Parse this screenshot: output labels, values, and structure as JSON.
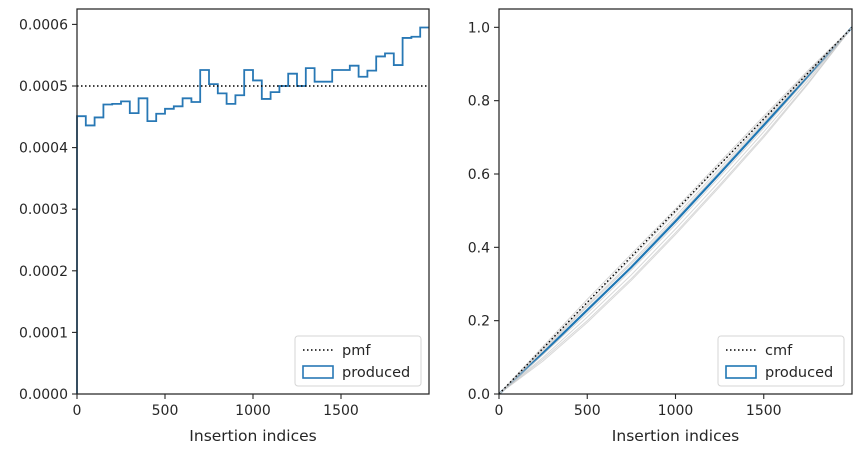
{
  "chart_data": [
    {
      "type": "step",
      "xlabel": "Insertion indices",
      "ylabel": "",
      "xlim": [
        0,
        2000
      ],
      "ylim": [
        0,
        0.000625
      ],
      "x_ticks": [
        0,
        500,
        1000,
        1500
      ],
      "x_tick_labels": [
        "0",
        "500",
        "1000",
        "1500"
      ],
      "y_ticks": [
        0,
        0.0001,
        0.0002,
        0.0003,
        0.0004,
        0.0005,
        0.0006
      ],
      "y_tick_labels": [
        "0.0000",
        "0.0001",
        "0.0002",
        "0.0003",
        "0.0004",
        "0.0005",
        "0.0006"
      ],
      "legend_position": "lower right",
      "series": [
        {
          "name": "pmf",
          "style": "dotted",
          "color": "#000000",
          "x": [
            0,
            2000
          ],
          "values": [
            0.0005,
            0.0005
          ]
        },
        {
          "name": "produced",
          "style": "step",
          "color": "#2878b5",
          "bin_edges": [
            0,
            50,
            100,
            150,
            200,
            250,
            300,
            350,
            400,
            450,
            500,
            550,
            600,
            650,
            700,
            750,
            800,
            850,
            900,
            950,
            1000,
            1050,
            1100,
            1150,
            1200,
            1250,
            1300,
            1350,
            1400,
            1450,
            1500,
            1550,
            1600,
            1650,
            1700,
            1750,
            1800,
            1850,
            1900,
            1950,
            2000
          ],
          "values": [
            0.000451,
            0.000436,
            0.000449,
            0.00047,
            0.000471,
            0.000475,
            0.000456,
            0.00048,
            0.000443,
            0.000455,
            0.000463,
            0.000467,
            0.00048,
            0.000474,
            0.000526,
            0.000503,
            0.000488,
            0.000471,
            0.000485,
            0.000526,
            0.000509,
            0.000479,
            0.00049,
            0.0005,
            0.00052,
            0.0005,
            0.000529,
            0.000507,
            0.000507,
            0.000526,
            0.000526,
            0.000533,
            0.000515,
            0.000525,
            0.000548,
            0.000553,
            0.000534,
            0.000578,
            0.00058,
            0.000595
          ]
        }
      ]
    },
    {
      "type": "line",
      "xlabel": "Insertion indices",
      "ylabel": "",
      "xlim": [
        0,
        2000
      ],
      "ylim": [
        0,
        1.05
      ],
      "x_ticks": [
        0,
        500,
        1000,
        1500
      ],
      "x_tick_labels": [
        "0",
        "500",
        "1000",
        "1500"
      ],
      "y_ticks": [
        0,
        0.2,
        0.4,
        0.6,
        0.8,
        1.0
      ],
      "y_tick_labels": [
        "0.0",
        "0.2",
        "0.4",
        "0.6",
        "0.8",
        "1.0"
      ],
      "legend_position": "lower right",
      "series": [
        {
          "name": "cmf",
          "style": "dotted",
          "color": "#000000",
          "x": [
            0,
            2000
          ],
          "values": [
            0,
            1
          ]
        },
        {
          "name": "produced",
          "style": "line",
          "color": "#1f77b4",
          "x": [
            0,
            250,
            500,
            750,
            1000,
            1250,
            1500,
            1750,
            2000
          ],
          "values": [
            0,
            0.112,
            0.229,
            0.346,
            0.471,
            0.601,
            0.733,
            0.866,
            1.0
          ]
        },
        {
          "name": "",
          "style": "faint",
          "color": "#c8c8c8",
          "x": [
            0,
            250,
            500,
            750,
            1000,
            1250,
            1500,
            1750,
            2000
          ],
          "values": [
            0,
            0.1,
            0.21,
            0.325,
            0.45,
            0.58,
            0.715,
            0.855,
            1.0
          ]
        },
        {
          "name": "",
          "style": "faint",
          "color": "#c8c8c8",
          "x": [
            0,
            250,
            500,
            750,
            1000,
            1250,
            1500,
            1750,
            2000
          ],
          "values": [
            0,
            0.125,
            0.248,
            0.37,
            0.495,
            0.625,
            0.752,
            0.878,
            1.0
          ]
        },
        {
          "name": "",
          "style": "faint",
          "color": "#c8c8c8",
          "x": [
            0,
            250,
            500,
            750,
            1000,
            1250,
            1500,
            1750,
            2000
          ],
          "values": [
            0,
            0.095,
            0.2,
            0.315,
            0.44,
            0.57,
            0.705,
            0.848,
            1.0
          ]
        },
        {
          "name": "",
          "style": "faint",
          "color": "#c8c8c8",
          "x": [
            0,
            250,
            500,
            750,
            1000,
            1250,
            1500,
            1750,
            2000
          ],
          "values": [
            0,
            0.13,
            0.258,
            0.382,
            0.505,
            0.632,
            0.758,
            0.882,
            1.0
          ]
        },
        {
          "name": "",
          "style": "faint",
          "color": "#c8c8c8",
          "x": [
            0,
            250,
            500,
            750,
            1000,
            1250,
            1500,
            1750,
            2000
          ],
          "values": [
            0,
            0.108,
            0.22,
            0.338,
            0.462,
            0.592,
            0.725,
            0.862,
            1.0
          ]
        },
        {
          "name": "",
          "style": "faint",
          "color": "#c8c8c8",
          "x": [
            0,
            250,
            500,
            750,
            1000,
            1250,
            1500,
            1750,
            2000
          ],
          "values": [
            0,
            0.118,
            0.238,
            0.355,
            0.478,
            0.608,
            0.74,
            0.87,
            1.0
          ]
        },
        {
          "name": "",
          "style": "faint",
          "color": "#c8c8c8",
          "x": [
            0,
            250,
            500,
            750,
            1000,
            1250,
            1500,
            1750,
            2000
          ],
          "values": [
            0,
            0.09,
            0.195,
            0.31,
            0.435,
            0.565,
            0.7,
            0.845,
            1.0
          ]
        },
        {
          "name": "",
          "style": "faint",
          "color": "#c8c8c8",
          "x": [
            0,
            250,
            500,
            750,
            1000,
            1250,
            1500,
            1750,
            2000
          ],
          "values": [
            0,
            0.121,
            0.242,
            0.36,
            0.485,
            0.615,
            0.745,
            0.874,
            1.0
          ]
        }
      ]
    }
  ]
}
